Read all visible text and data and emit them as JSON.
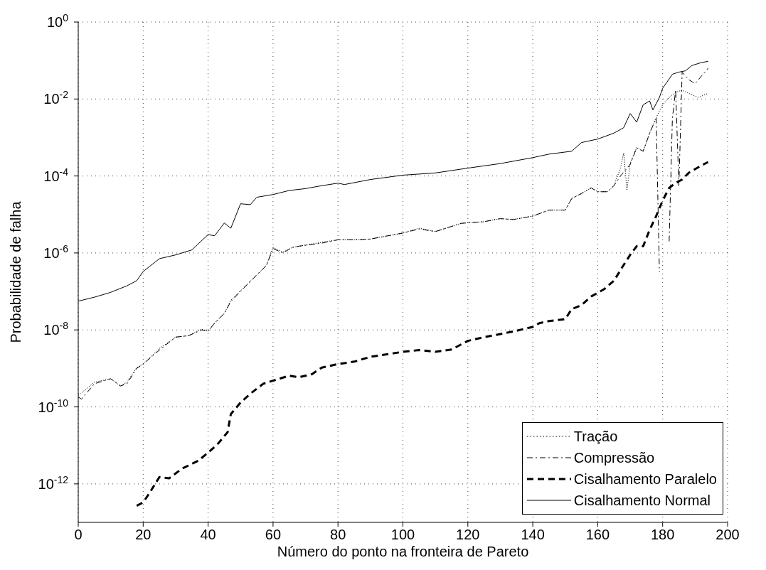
{
  "chart_data": {
    "type": "line",
    "xlabel": "Número do ponto na fronteira de Pareto",
    "ylabel": "Probabilidade de falha",
    "log": "y",
    "grid": true,
    "legend": "bottom right",
    "marker": "none",
    "xlim": [
      0,
      200
    ],
    "xticks": [
      0,
      20,
      40,
      60,
      80,
      100,
      120,
      140,
      160,
      180,
      200
    ],
    "ylim": [
      1e-13,
      1
    ],
    "yticks": [
      {
        "value": 1,
        "label": "10$^{0}$"
      },
      {
        "value": 0.01,
        "label": "10$^{-2}$"
      },
      {
        "value": 0.0001,
        "label": "10$^{-4}$"
      },
      {
        "value": 1e-06,
        "label": "10$^{-6}$"
      },
      {
        "value": 1e-08,
        "label": "10$^{-8}$"
      },
      {
        "value": 1e-10,
        "label": "10$^{-10}$"
      },
      {
        "value": 1e-12,
        "label": "10$^{-12}$"
      }
    ],
    "series": [
      {
        "name": "Tração",
        "color": "#000000",
        "line_style": "dotted",
        "x": [
          0,
          5,
          10,
          13,
          15,
          18,
          20,
          25,
          30,
          34,
          38,
          40,
          42,
          45,
          47,
          50,
          55,
          58,
          60,
          63,
          66,
          68,
          75,
          80,
          85,
          90,
          100,
          105,
          110,
          118,
          125,
          130,
          134,
          140,
          145,
          150,
          152,
          155,
          158,
          160,
          163,
          165,
          167,
          168,
          169,
          170,
          172,
          174,
          176,
          178,
          180,
          182,
          184,
          186,
          188,
          191,
          194
        ],
        "values": [
          2e-10,
          4.4e-10,
          5.4e-10,
          3.5e-10,
          4.4e-10,
          1.05e-09,
          1.3e-09,
          3.3e-09,
          6.5e-09,
          7.1e-09,
          1.05e-08,
          9.3e-09,
          1.5e-08,
          2.7e-08,
          5.9e-08,
          1.05e-07,
          2.7e-07,
          4.8e-07,
          1.4e-06,
          1.05e-06,
          1.4e-06,
          1.5e-06,
          1.9e-06,
          2.2e-06,
          2.2e-06,
          2.3e-06,
          3.3e-06,
          4.4e-06,
          3.6e-06,
          5.9e-06,
          6.5e-06,
          7.8e-06,
          7.4e-06,
          9.1e-06,
          1.3e-05,
          1.3e-05,
          2.6e-05,
          3.5e-05,
          4.9e-05,
          3.9e-05,
          3.9e-05,
          5.6e-05,
          0.00016,
          0.0004,
          4.2e-05,
          0.00022,
          0.00054,
          0.00044,
          0.0013,
          0.0033,
          0.0071,
          0.011,
          0.015,
          0.017,
          0.014,
          0.011,
          0.014
        ]
      },
      {
        "name": "Compressão",
        "color": "#000000",
        "line_style": "dashdot",
        "x": [
          0,
          1,
          5,
          10,
          13,
          15,
          18,
          20,
          25,
          30,
          34,
          38,
          40,
          42,
          45,
          47,
          50,
          55,
          58,
          60,
          63,
          66,
          68,
          75,
          80,
          85,
          90,
          100,
          105,
          110,
          118,
          125,
          130,
          134,
          140,
          145,
          150,
          152,
          155,
          158,
          160,
          163,
          165,
          167,
          170,
          172,
          174,
          176,
          178,
          179,
          180,
          181,
          182,
          183,
          184,
          185,
          186,
          188,
          190,
          192,
          194
        ],
        "values": [
          1.8e-10,
          1.6e-10,
          4e-10,
          5.4e-10,
          3.5e-10,
          4e-10,
          1e-09,
          1.3e-09,
          3e-09,
          6.5e-09,
          7.1e-09,
          1e-08,
          9.3e-09,
          1.5e-08,
          2.7e-08,
          5.5e-08,
          1e-07,
          2.7e-07,
          4.8e-07,
          1.3e-06,
          1e-06,
          1.4e-06,
          1.5e-06,
          1.8e-06,
          2.2e-06,
          2.2e-06,
          2.3e-06,
          3.3e-06,
          4.2e-06,
          3.6e-06,
          5.9e-06,
          6.5e-06,
          7.8e-06,
          7.4e-06,
          9.1e-06,
          1.3e-05,
          1.3e-05,
          2.6e-05,
          3.5e-05,
          4.9e-05,
          3.9e-05,
          3.9e-05,
          5.6e-05,
          0.0001,
          0.0002,
          0.00054,
          0.00044,
          0.0013,
          0.0032,
          3.2e-07,
          null,
          null,
          2e-06,
          0.0032,
          0.017,
          5.6e-05,
          0.05,
          0.032,
          0.025,
          0.04,
          0.063
        ]
      },
      {
        "name": "Cisalhamento Paralelo",
        "color": "#000000",
        "line_style": "dashed",
        "x": [
          18,
          20,
          22,
          25,
          28,
          32,
          37,
          40,
          43,
          46,
          47,
          50,
          53,
          57,
          60,
          65,
          68,
          72,
          75,
          80,
          85,
          90,
          100,
          105,
          110,
          115,
          120,
          125,
          130,
          134,
          140,
          142,
          145,
          150,
          152,
          155,
          158,
          162,
          165,
          168,
          170,
          172,
          174,
          176,
          178,
          180,
          182,
          184,
          186,
          188,
          192,
          194
        ],
        "values": [
          2.7e-13,
          3.3e-13,
          5.9e-13,
          1.5e-12,
          1.4e-12,
          2.5e-12,
          4e-12,
          6.5e-12,
          1.1e-11,
          2.2e-11,
          6.5e-11,
          1.3e-10,
          2.2e-10,
          4e-10,
          4.8e-10,
          6.5e-10,
          5.9e-10,
          7.1e-10,
          1.05e-09,
          1.3e-09,
          1.5e-09,
          2e-09,
          2.7e-09,
          3e-09,
          2.7e-09,
          3.1e-09,
          5.2e-09,
          6.5e-09,
          7.8e-09,
          9.1e-09,
          1.2e-08,
          1.5e-08,
          1.7e-08,
          1.9e-08,
          3.5e-08,
          4.4e-08,
          7.4e-08,
          1.15e-07,
          1.9e-07,
          4.9e-07,
          8.9e-07,
          1.5e-06,
          1.5e-06,
          4e-06,
          9.1e-06,
          2.3e-05,
          4.9e-05,
          6.6e-05,
          8.1e-05,
          0.00012,
          0.00019,
          0.00023
        ]
      },
      {
        "name": "Cisalhamento Normal",
        "color": "#000000",
        "line_style": "solid",
        "x": [
          0,
          5,
          10,
          15,
          18,
          20,
          25,
          30,
          35,
          40,
          42,
          45,
          47,
          50,
          53,
          55,
          60,
          65,
          70,
          75,
          80,
          82,
          90,
          100,
          110,
          120,
          130,
          140,
          145,
          152,
          155,
          160,
          165,
          168,
          170,
          172,
          174,
          176,
          177,
          179,
          180,
          183,
          185,
          187,
          189,
          192,
          194
        ],
        "values": [
          5.6e-08,
          7.1e-08,
          9.5e-08,
          1.4e-07,
          1.9e-07,
          3.3e-07,
          7.1e-07,
          8.9e-07,
          1.2e-06,
          3e-06,
          2.8e-06,
          6e-06,
          4.4e-06,
          1.9e-05,
          1.8e-05,
          2.8e-05,
          3.3e-05,
          4.2e-05,
          4.7e-05,
          5.6e-05,
          6.5e-05,
          6e-05,
          8.1e-05,
          0.000105,
          0.00012,
          0.00016,
          0.00021,
          0.0003,
          0.00037,
          0.00044,
          0.00074,
          0.00091,
          0.0013,
          0.0018,
          0.0042,
          0.0025,
          0.0071,
          0.0089,
          0.0052,
          0.011,
          0.019,
          0.044,
          0.05,
          0.054,
          0.074,
          0.089,
          0.095
        ]
      }
    ]
  }
}
